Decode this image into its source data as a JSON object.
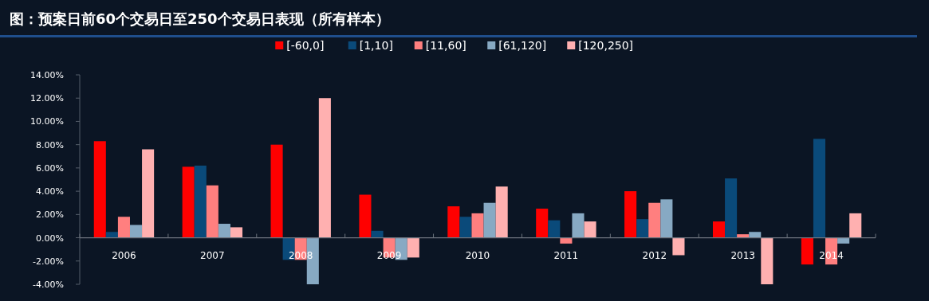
{
  "chart_data": {
    "type": "bar",
    "title": "图：预案日前60个交易日至250个交易日表现（所有样本）",
    "categories": [
      "2006",
      "2007",
      "2008",
      "2009",
      "2010",
      "2011",
      "2012",
      "2013",
      "2014"
    ],
    "series": [
      {
        "name": "[-60,0]",
        "color": "#ff0000",
        "values": [
          8.3,
          6.1,
          8.0,
          3.7,
          2.7,
          2.5,
          4.0,
          1.4,
          -2.3
        ]
      },
      {
        "name": "[1,10]",
        "color": "#0a4a7a",
        "values": [
          0.5,
          6.2,
          -1.9,
          0.6,
          1.8,
          1.5,
          1.6,
          5.1,
          8.5
        ]
      },
      {
        "name": "[11,60]",
        "color": "#ff7f7f",
        "values": [
          1.8,
          4.5,
          -1.9,
          -1.7,
          2.1,
          -0.5,
          3.0,
          0.3,
          -2.3
        ]
      },
      {
        "name": "[61,120]",
        "color": "#87a9c3",
        "values": [
          1.1,
          1.2,
          -4.0,
          -1.9,
          3.0,
          2.1,
          3.3,
          0.5,
          -0.5
        ]
      },
      {
        "name": "[120,250]",
        "color": "#ffb0b0",
        "values": [
          7.6,
          0.9,
          12.0,
          -1.7,
          4.4,
          1.4,
          -1.5,
          -4.0,
          2.1
        ]
      }
    ],
    "ylim": [
      -4,
      14
    ],
    "yticks": [
      {
        "value": -4,
        "label": "-4.00%"
      },
      {
        "value": -2,
        "label": "-2.00%"
      },
      {
        "value": 0,
        "label": "0.00%"
      },
      {
        "value": 2,
        "label": "2.00%"
      },
      {
        "value": 4,
        "label": "4.00%"
      },
      {
        "value": 6,
        "label": "6.00%"
      },
      {
        "value": 8,
        "label": "8.00%"
      },
      {
        "value": 10,
        "label": "10.00%"
      },
      {
        "value": 12,
        "label": "12.00%"
      },
      {
        "value": 14,
        "label": "14.00%"
      }
    ],
    "legend": "top",
    "grid": false
  }
}
